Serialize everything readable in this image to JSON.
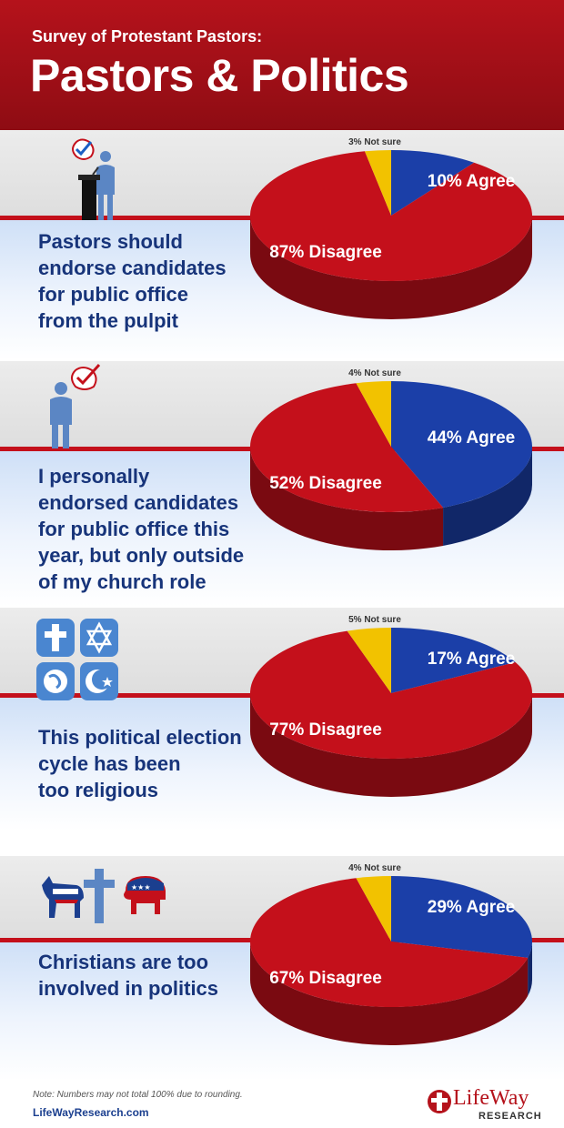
{
  "header": {
    "subtitle": "Survey of Protestant Pastors:",
    "title": "Pastors & Politics"
  },
  "colors": {
    "agree": "#1b3fa8",
    "disagree": "#c4101b",
    "not_sure": "#f2c200",
    "question_text": "#17347a",
    "header": "#b5121b"
  },
  "chart_data": [
    {
      "type": "pie",
      "title": "Pastors should endorse candidates for public office from the pulpit",
      "labels": [
        "Agree",
        "Disagree",
        "Not sure"
      ],
      "values": [
        10,
        87,
        3
      ],
      "display": {
        "agree": "10% Agree",
        "disagree": "87% Disagree",
        "not_sure": "3% Not sure"
      },
      "icon": "podium-speaker-icon"
    },
    {
      "type": "pie",
      "title": "I personally endorsed candidates for public office this year, but only outside of my church role",
      "labels": [
        "Agree",
        "Disagree",
        "Not sure"
      ],
      "values": [
        44,
        52,
        4
      ],
      "display": {
        "agree": "44% Agree",
        "disagree": "52% Disagree",
        "not_sure": "4% Not sure"
      },
      "icon": "person-checkmark-icon"
    },
    {
      "type": "pie",
      "title": "This political election cycle has been too religious",
      "labels": [
        "Agree",
        "Disagree",
        "Not sure"
      ],
      "values": [
        17,
        77,
        5
      ],
      "display": {
        "agree": "17% Agree",
        "disagree": "77% Disagree",
        "not_sure": "5% Not sure"
      },
      "icon": "religious-symbols-icon"
    },
    {
      "type": "pie",
      "title": "Christians are too involved in politics",
      "labels": [
        "Agree",
        "Disagree",
        "Not sure"
      ],
      "values": [
        29,
        67,
        4
      ],
      "display": {
        "agree": "29% Agree",
        "disagree": "67% Disagree",
        "not_sure": "4% Not sure"
      },
      "icon": "donkey-cross-elephant-icon"
    }
  ],
  "panels": [
    {
      "question_lines": [
        "Pastors should",
        "endorse candidates",
        "for public office",
        "from the pulpit"
      ]
    },
    {
      "question_lines": [
        "I personally",
        "endorsed candidates",
        "for public office this",
        "year, but only outside",
        "of my church role"
      ]
    },
    {
      "question_lines": [
        "This political election",
        "cycle has been",
        "too religious"
      ]
    },
    {
      "question_lines": [
        "Christians are too",
        "involved in politics"
      ]
    }
  ],
  "footer": {
    "note": "Note: Numbers may not total 100% due to rounding.",
    "url": "LifeWayResearch.com",
    "logo_name": "LifeWay",
    "logo_sub": "RESEARCH"
  }
}
